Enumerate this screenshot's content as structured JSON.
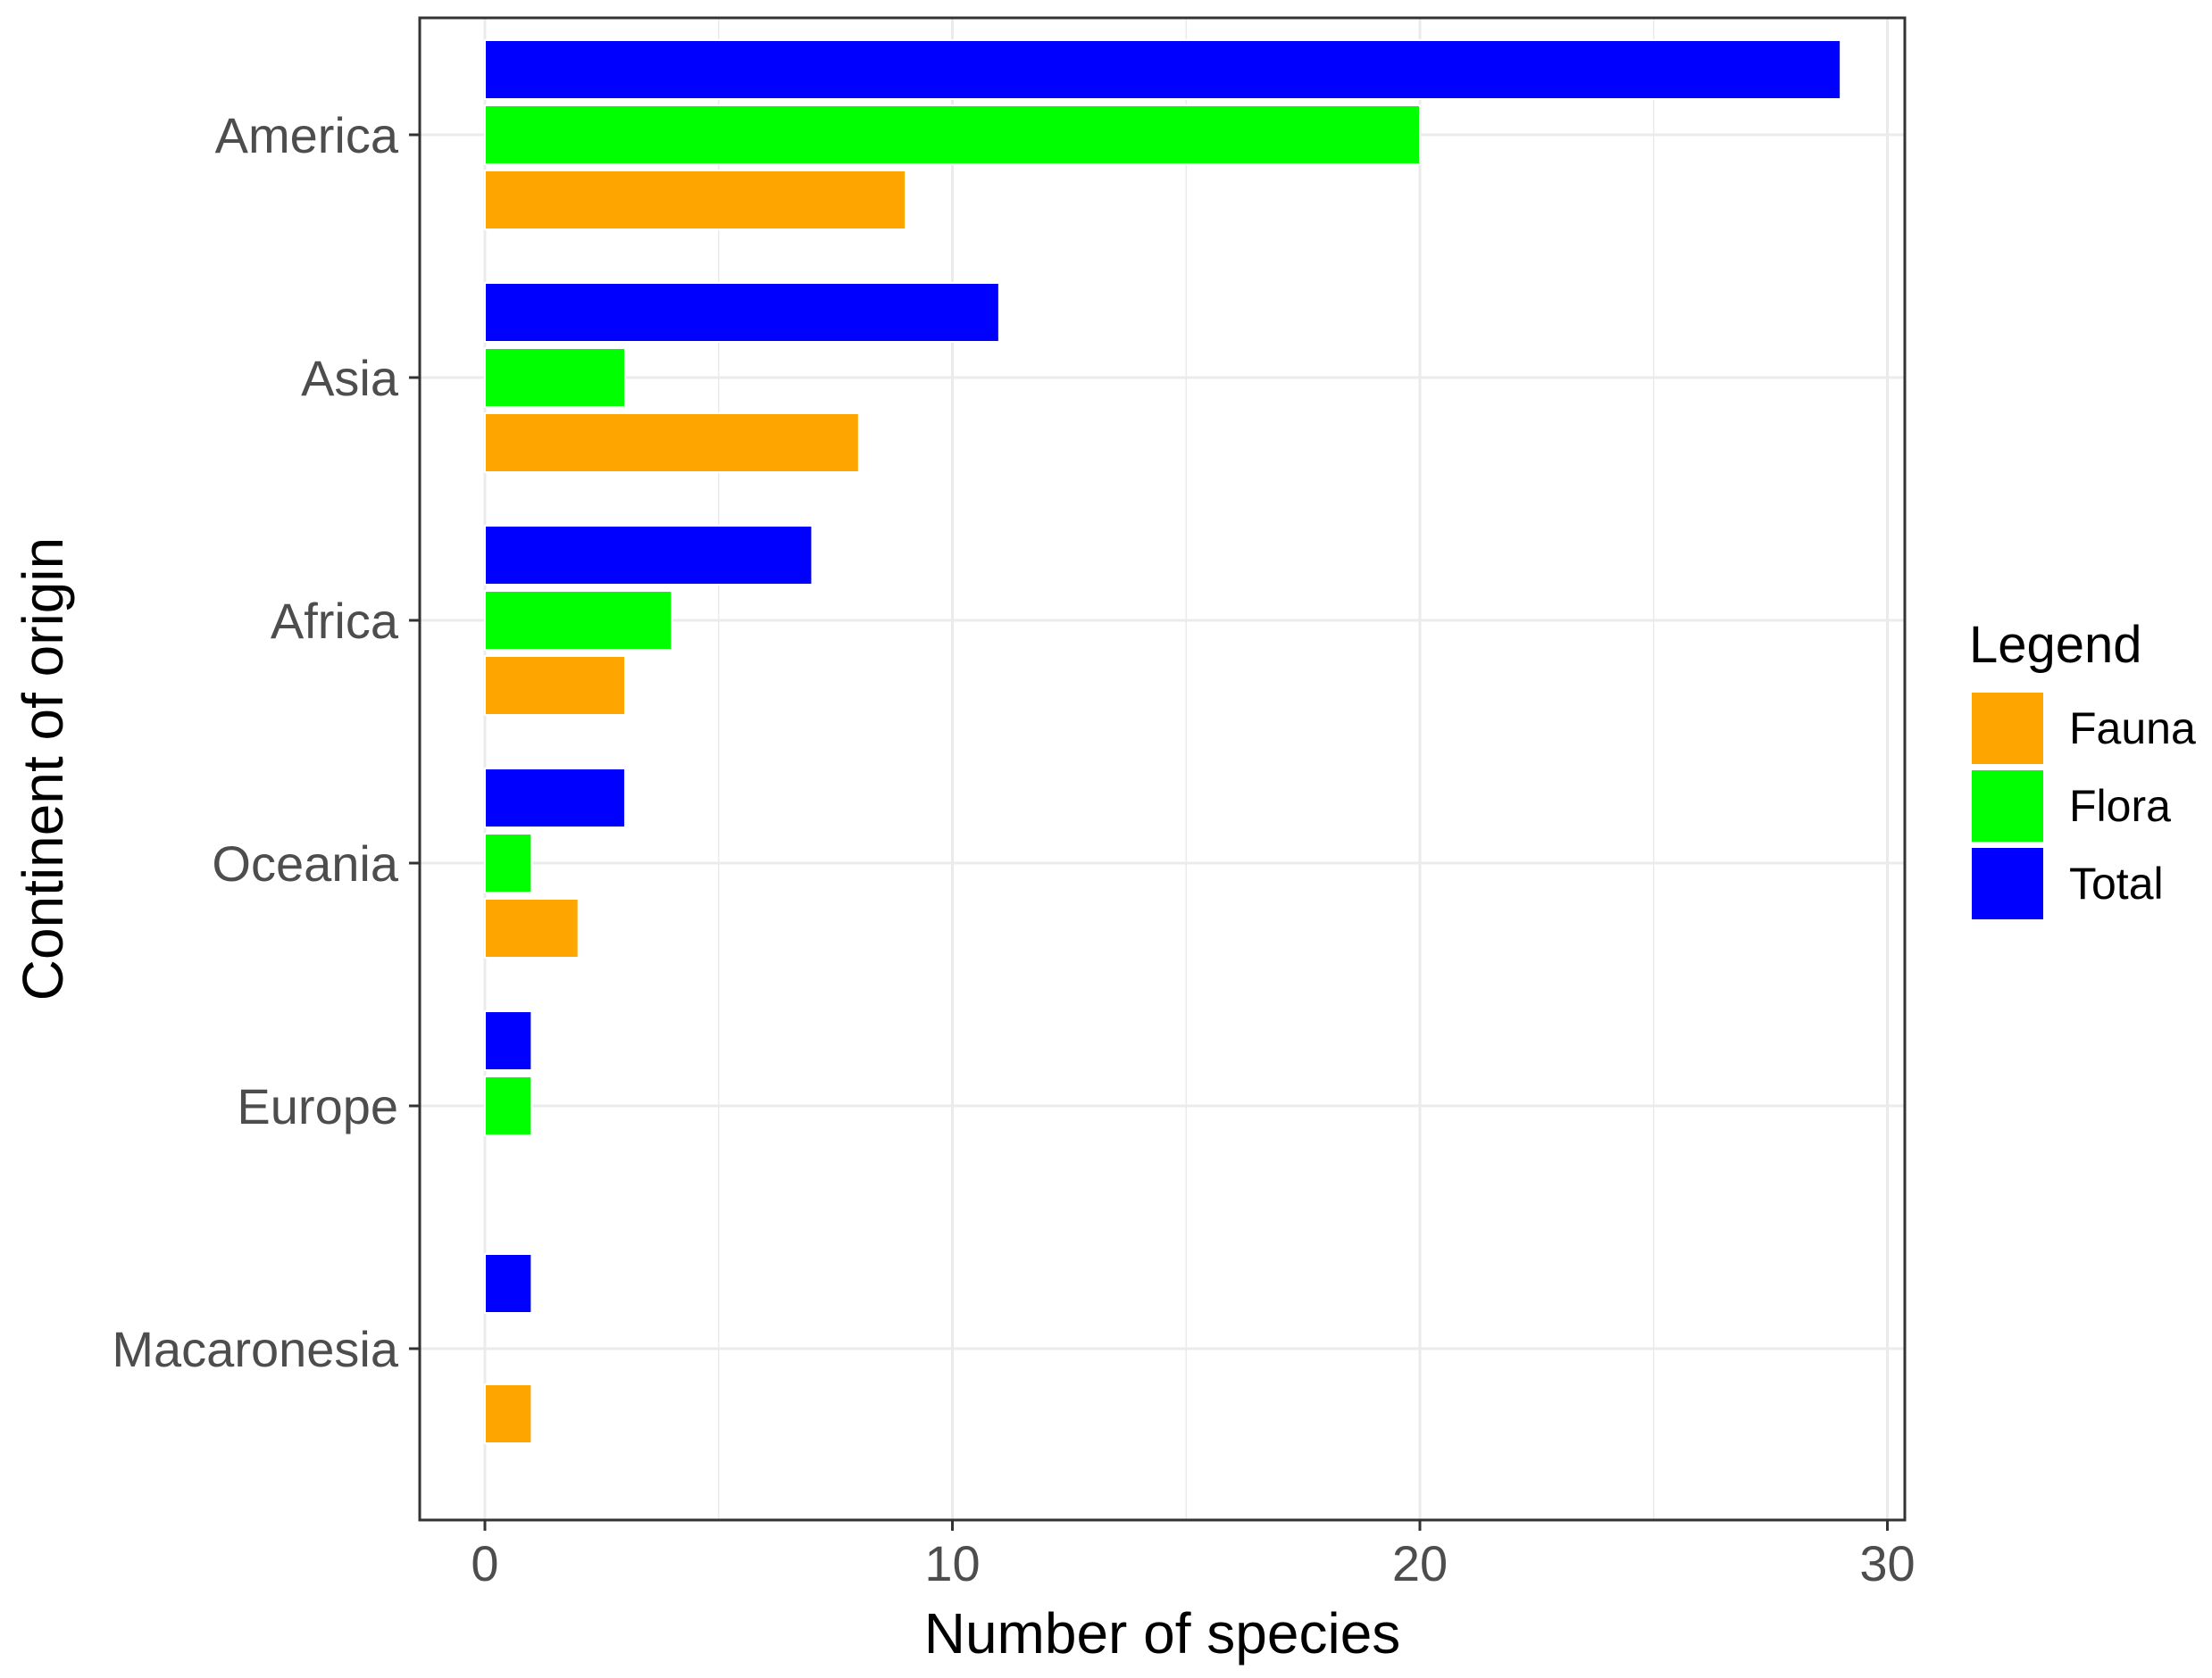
{
  "chart_data": {
    "type": "bar",
    "orientation": "horizontal",
    "categories": [
      "America",
      "Asia",
      "Africa",
      "Oceania",
      "Europe",
      "Macaronesia"
    ],
    "series": [
      {
        "name": "Total",
        "color": "#0000ff",
        "values": [
          29,
          11,
          7,
          3,
          1,
          1
        ]
      },
      {
        "name": "Flora",
        "color": "#00ff00",
        "values": [
          20,
          3,
          4,
          1,
          1,
          0
        ]
      },
      {
        "name": "Fauna",
        "color": "#ffa500",
        "values": [
          9,
          8,
          3,
          2,
          0,
          1
        ]
      }
    ],
    "xlabel": "Number of species",
    "ylabel": "Continent of origin",
    "xlim": [
      0,
      30
    ],
    "xticks": [
      "0",
      "10",
      "20",
      "30"
    ],
    "grid": true,
    "legend": {
      "title": "Legend",
      "position": "right",
      "entries": [
        "Fauna",
        "Flora",
        "Total"
      ]
    }
  }
}
